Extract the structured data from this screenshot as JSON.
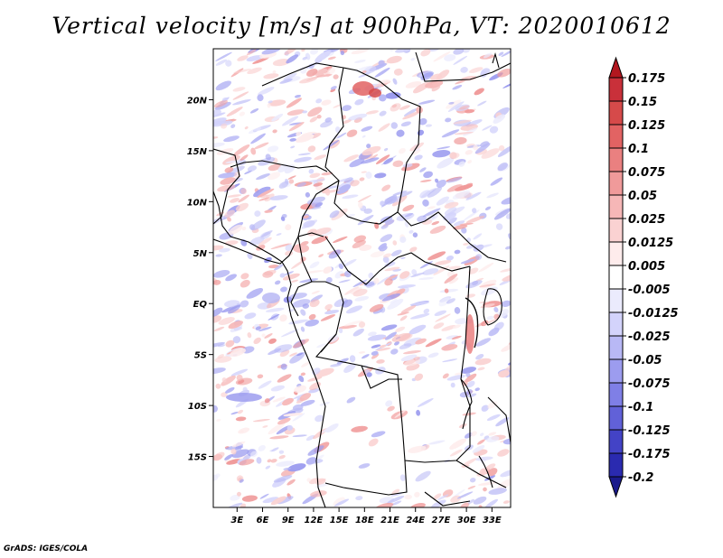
{
  "chart_data": {
    "type": "heatmap",
    "title": "Vertical velocity [m/s] at 900hPa, VT: 2020010612",
    "variable": "Vertical velocity",
    "units": "m/s",
    "level": "900hPa",
    "valid_time": "2020010612",
    "xlabel": "",
    "ylabel": "",
    "x_ticks": [
      "3E",
      "6E",
      "9E",
      "12E",
      "15E",
      "18E",
      "21E",
      "24E",
      "27E",
      "30E",
      "33E"
    ],
    "x_tick_values": [
      3,
      6,
      9,
      12,
      15,
      18,
      21,
      24,
      27,
      30,
      33
    ],
    "y_ticks": [
      "20N",
      "15N",
      "10N",
      "5N",
      "EQ",
      "5S",
      "10S",
      "15S"
    ],
    "y_tick_values": [
      20,
      15,
      10,
      5,
      0,
      -5,
      -10,
      -15
    ],
    "xlim": [
      0.2,
      35.2
    ],
    "ylim": [
      -20,
      25
    ],
    "colorbar": {
      "labels": [
        "0.175",
        "0.15",
        "0.125",
        "0.1",
        "0.075",
        "0.05",
        "0.025",
        "0.0125",
        "0.005",
        "-0.005",
        "-0.0125",
        "-0.025",
        "-0.05",
        "-0.075",
        "-0.1",
        "-0.125",
        "-0.175",
        "-0.2"
      ],
      "colors": [
        "#b2171f",
        "#c9303a",
        "#d64a4a",
        "#e26363",
        "#ea8080",
        "#f09a9a",
        "#f6b7b7",
        "#fad2d2",
        "#feecec",
        "#ffffff",
        "#ebebfd",
        "#d3d3fb",
        "#b8b8f5",
        "#9c9cef",
        "#7f7fe6",
        "#6161d8",
        "#4343c6",
        "#2a2ab0",
        "#1a1a8c"
      ]
    }
  },
  "footer": {
    "credit": "GrADS: IGES/COLA"
  }
}
